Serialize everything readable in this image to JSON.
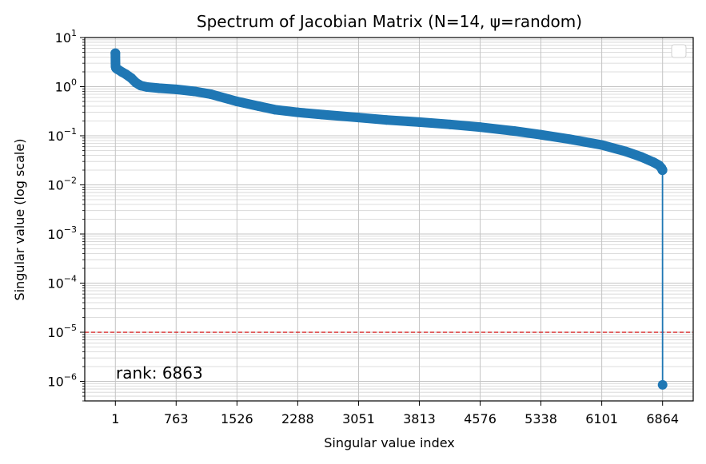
{
  "chart_data": {
    "type": "line",
    "title": "Spectrum of Jacobian Matrix (N=14, ψ=random)",
    "xlabel": "Singular value index",
    "ylabel": "Singular value (log scale)",
    "x_ticks": [
      1,
      763,
      1526,
      2288,
      3051,
      3813,
      4576,
      5338,
      6101,
      6864
    ],
    "xlim": [
      -383,
      7248
    ],
    "y_scale": "log",
    "ylim": [
      4e-07,
      10
    ],
    "y_ticks": [
      {
        "value": 10,
        "base": "10",
        "exp": "1"
      },
      {
        "value": 1,
        "base": "10",
        "exp": "0"
      },
      {
        "value": 0.1,
        "base": "10",
        "exp": "−1"
      },
      {
        "value": 0.01,
        "base": "10",
        "exp": "−2"
      },
      {
        "value": 0.001,
        "base": "10",
        "exp": "−3"
      },
      {
        "value": 0.0001,
        "base": "10",
        "exp": "−4"
      },
      {
        "value": 1e-05,
        "base": "10",
        "exp": "−5"
      },
      {
        "value": 1e-06,
        "base": "10",
        "exp": "−6"
      }
    ],
    "grid": true,
    "legend": "top-right (empty)",
    "series": [
      {
        "color": "#1f77b4",
        "marker": "circle",
        "points": [
          [
            1,
            4.8
          ],
          [
            3,
            2.6
          ],
          [
            8,
            2.4
          ],
          [
            20,
            2.3
          ],
          [
            40,
            2.2
          ],
          [
            80,
            2.0
          ],
          [
            130,
            1.8
          ],
          [
            200,
            1.5
          ],
          [
            260,
            1.2
          ],
          [
            320,
            1.05
          ],
          [
            400,
            0.98
          ],
          [
            550,
            0.93
          ],
          [
            763,
            0.88
          ],
          [
            1000,
            0.8
          ],
          [
            1200,
            0.7
          ],
          [
            1526,
            0.5
          ],
          [
            1800,
            0.4
          ],
          [
            2000,
            0.34
          ],
          [
            2288,
            0.3
          ],
          [
            2600,
            0.27
          ],
          [
            3051,
            0.235
          ],
          [
            3400,
            0.21
          ],
          [
            3813,
            0.19
          ],
          [
            4200,
            0.17
          ],
          [
            4576,
            0.15
          ],
          [
            5000,
            0.125
          ],
          [
            5338,
            0.105
          ],
          [
            5700,
            0.085
          ],
          [
            6101,
            0.065
          ],
          [
            6400,
            0.048
          ],
          [
            6600,
            0.037
          ],
          [
            6750,
            0.029
          ],
          [
            6820,
            0.025
          ],
          [
            6850,
            0.022
          ],
          [
            6862,
            0.02
          ],
          [
            6863,
            0.02
          ],
          [
            6864,
            8.5e-07
          ]
        ]
      }
    ],
    "threshold": {
      "value": 1e-05,
      "color": "#d62728",
      "style": "dashed"
    },
    "annotations": [
      {
        "text": "rank: 6863"
      }
    ]
  }
}
